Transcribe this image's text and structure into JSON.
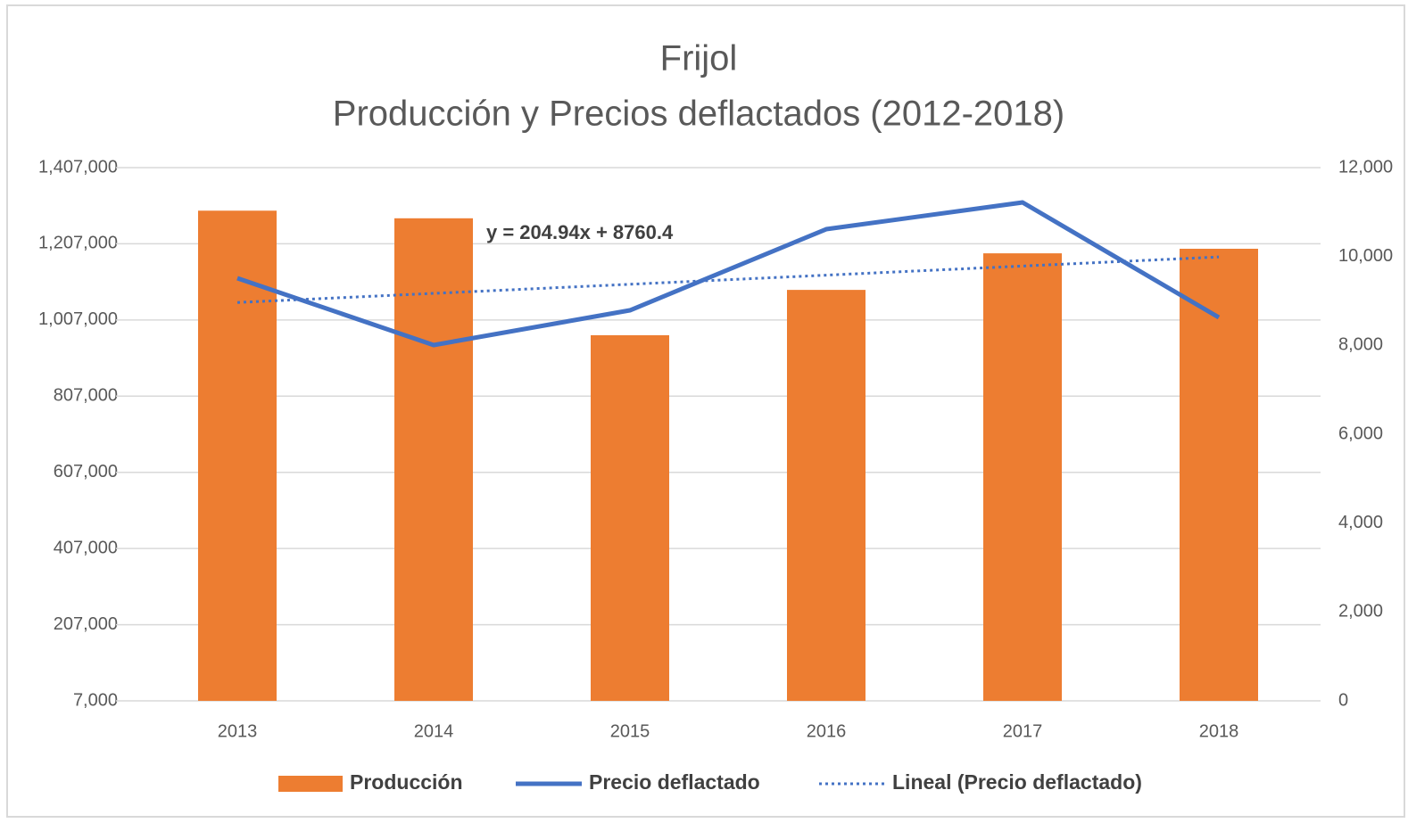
{
  "chart_data": {
    "type": "bar",
    "title": "Frijol",
    "subtitle": "Producción y Precios deflactados (2012-2018)",
    "annotation": "y = 204.94x + 8760.4",
    "categories": [
      "2013",
      "2014",
      "2015",
      "2016",
      "2017",
      "2018"
    ],
    "series": [
      {
        "name": "Producción",
        "type": "bar",
        "color": "#ed7d31",
        "axis": "y",
        "values": [
          1294000,
          1274000,
          967000,
          1086000,
          1182000,
          1194000
        ]
      },
      {
        "name": "Precio deflactado",
        "type": "line",
        "color": "#4472c4",
        "axis": "y2",
        "values": [
          9512,
          8007,
          8789,
          10615,
          11217,
          8629
        ]
      },
      {
        "name": "Lineal (Precio deflactado)",
        "type": "trend",
        "color": "#4472c4",
        "axis": "y2",
        "values": [
          8965,
          9170,
          9375,
          9580,
          9785,
          9990
        ]
      }
    ],
    "ylim": [
      7000,
      1407000
    ],
    "yticks": [
      {
        "value": 7000,
        "label": "7,000"
      },
      {
        "value": 207000,
        "label": "207,000"
      },
      {
        "value": 407000,
        "label": "407,000"
      },
      {
        "value": 607000,
        "label": "607,000"
      },
      {
        "value": 807000,
        "label": "807,000"
      },
      {
        "value": 1007000,
        "label": "1,007,000"
      },
      {
        "value": 1207000,
        "label": "1,207,000"
      },
      {
        "value": 1407000,
        "label": "1,407,000"
      }
    ],
    "y2lim": [
      0,
      12000
    ],
    "y2ticks": [
      0,
      {
        "value": 2000,
        "label": "2,000"
      },
      {
        "value": 4000,
        "label": "4,000"
      },
      {
        "value": 6000,
        "label": "6,000"
      },
      {
        "value": 8000,
        "label": "8,000"
      },
      {
        "value": 10000,
        "label": "10,000"
      },
      {
        "value": 12000,
        "label": "12,000"
      }
    ],
    "grid": true,
    "legend": "bottom"
  }
}
